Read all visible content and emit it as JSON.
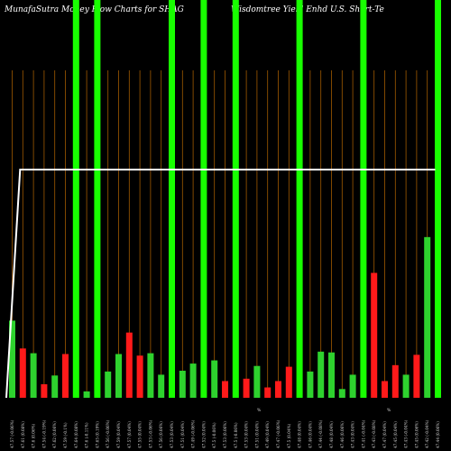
{
  "header": {
    "left": "MunafaSutra  Money Flow  Charts for SHAG",
    "right": "Wisdomtree   Yield Enhd U.S. Short-Te"
  },
  "colors": {
    "background": "#000000",
    "up": "#2ed22e",
    "down": "#ff1a1a",
    "highlight": "#18ff00",
    "gridline": "#a05a00",
    "price_line": "#ffffff"
  },
  "chart_data": {
    "type": "bar",
    "title": "MunafaSutra  Money Flow  Charts for SHAG",
    "subtitle": "Wisdomtree   Yield Enhd U.S. Short-Te",
    "categories": [
      "47.57 (-0.06%)",
      "47.61 (0.08%)",
      "47.6 (0.06%)",
      "47.54 (-0.19%)",
      "47.62 (0.06%)",
      "47.59 (-0.1%)",
      "47.64 (0.08%)",
      "47.6 (-0.11%)",
      "47.65 (0.19%)",
      "47.56 (-0.06%)",
      "47.59 (0.04%)",
      "47.57 (0.04%)",
      "47.55 (0.04%)",
      "47.53 (-0.06%)",
      "47.56 (0.06%)",
      "47.53 (0.04%)",
      "47.51 (0.04%)",
      "47.49 (-0.06%)",
      "47.52 (0.04%)",
      "47.5 (-0.06%)",
      "47.53 (0.06%)",
      "47.5 (-0.06%)",
      "47.53 (0.04%)",
      "47.51 (0.04%)",
      "47.49 (0.04%)",
      "47.47 (-0.06%)",
      "47.5 (0.04%)",
      "47.48 (0.04%)",
      "47.46 (0.04%)",
      "47.44 (-0.08%)",
      "47.48 (0.04%)",
      "47.46 (0.06%)",
      "47.43 (0.04%)",
      "47.41 (-0.04%)",
      "47.43 (-0.08%)",
      "47.47 (0.04%)",
      "47.45 (0.04%)",
      "47.43 (-0.04%)",
      "47.45 (0.06%)",
      "47.42 (-0.04%)",
      "47.44 (0.06%)"
    ],
    "values": [
      97,
      62,
      56,
      17,
      28,
      55,
      500,
      8,
      500,
      33,
      55,
      82,
      53,
      56,
      29,
      500,
      34,
      43,
      500,
      47,
      21,
      500,
      24,
      40,
      13,
      21,
      39,
      500,
      33,
      58,
      57,
      11,
      29,
      500,
      157,
      21,
      41,
      29,
      54,
      202,
      500
    ],
    "colors": [
      "up",
      "down",
      "up",
      "down",
      "up",
      "down",
      "highlight",
      "up",
      "highlight",
      "up",
      "up",
      "down",
      "down",
      "up",
      "up",
      "highlight",
      "up",
      "up",
      "highlight",
      "up",
      "down",
      "highlight",
      "down",
      "up",
      "down",
      "down",
      "down",
      "highlight",
      "up",
      "up",
      "up",
      "up",
      "up",
      "highlight",
      "down",
      "down",
      "down",
      "up",
      "down",
      "up",
      "highlight"
    ],
    "price_line": [
      0,
      94,
      94,
      94,
      94,
      94,
      94,
      94,
      94,
      94,
      94,
      94,
      94,
      94,
      94,
      94,
      94,
      94,
      94,
      94,
      94,
      94,
      94,
      94,
      94,
      94,
      94,
      94,
      94,
      94,
      94,
      94,
      94,
      94,
      94,
      94,
      94,
      94,
      94,
      94,
      94
    ],
    "ylim": [
      0,
      500
    ],
    "grid": true,
    "notes": [
      "%",
      "%"
    ]
  }
}
